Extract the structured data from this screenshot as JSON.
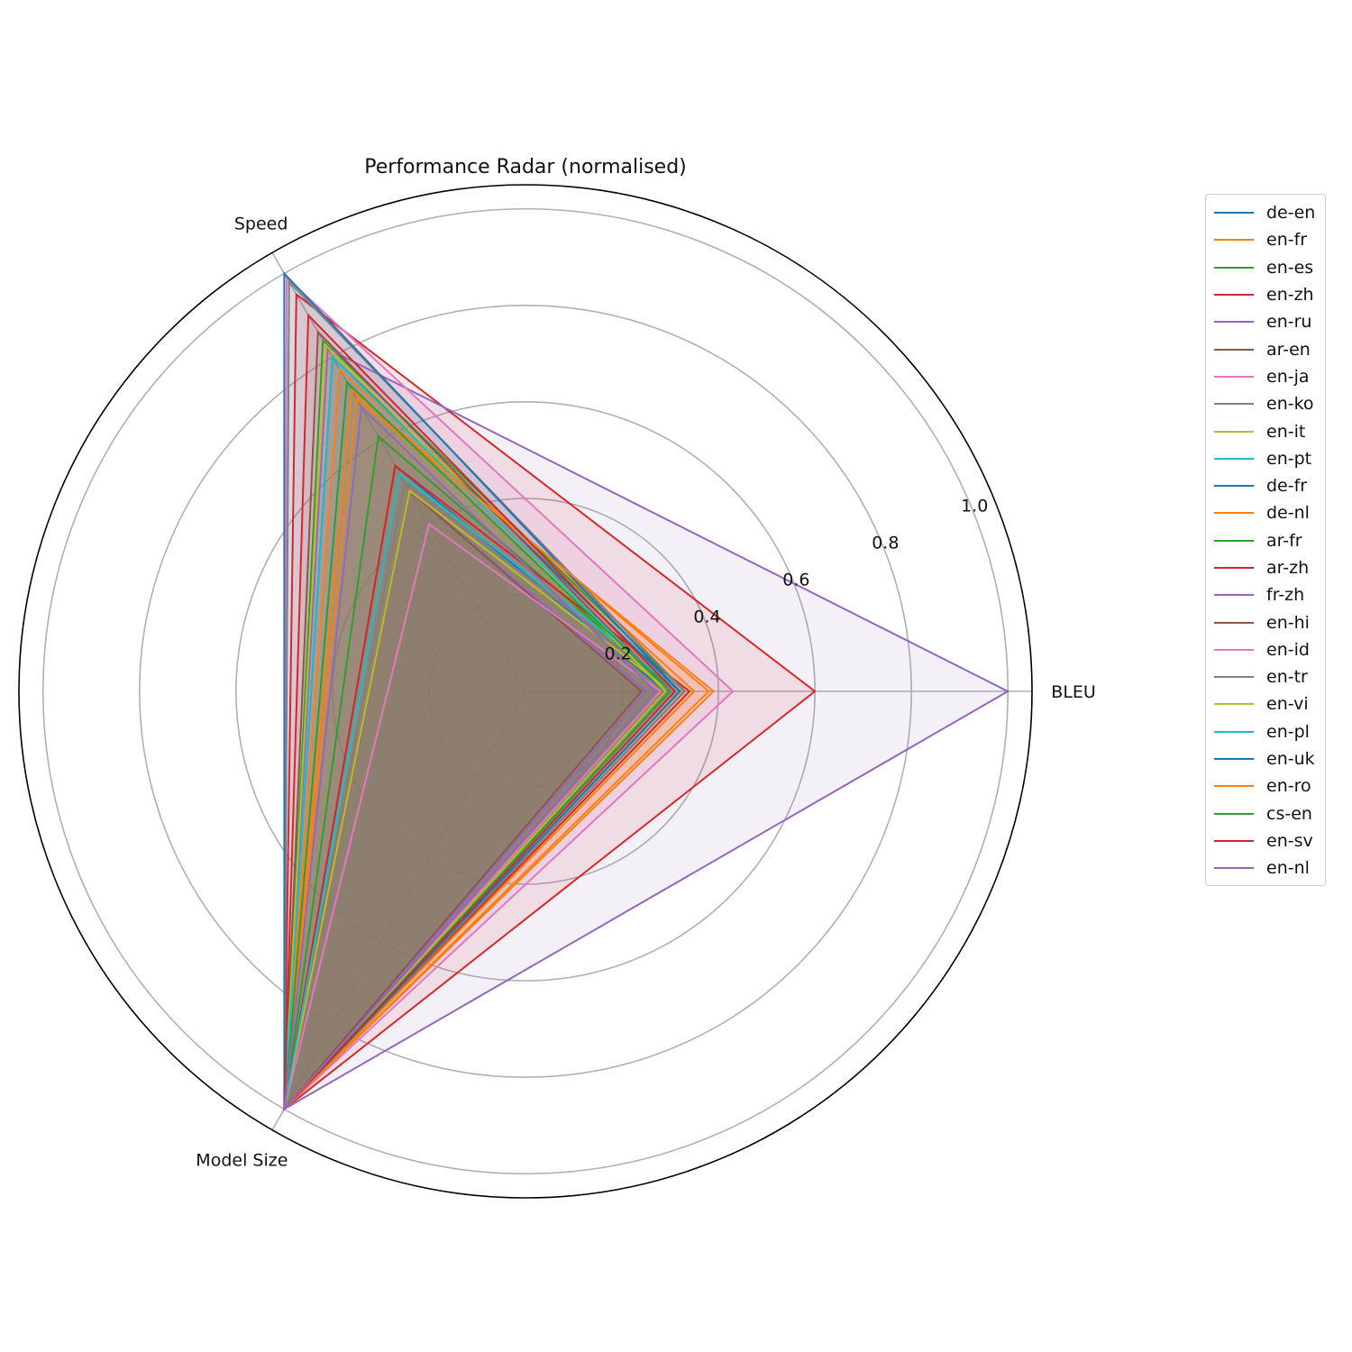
{
  "chart_data": {
    "type": "radar",
    "title": "Performance Radar (normalised)",
    "axes": [
      "BLEU",
      "Speed",
      "Model Size"
    ],
    "rlim": [
      0,
      1.05
    ],
    "r_ticks": [
      0.2,
      0.4,
      0.6,
      0.8,
      1.0
    ],
    "r_tick_labels": [
      "0.2",
      "0.4",
      "0.6",
      "0.8",
      "1.0"
    ],
    "grid": true,
    "legend_position": "right",
    "series": [
      {
        "name": "de-en",
        "color": "#1f77b4",
        "values": [
          0.29,
          0.54,
          1.0
        ]
      },
      {
        "name": "en-fr",
        "color": "#ff7f0e",
        "values": [
          0.38,
          0.72,
          1.0
        ]
      },
      {
        "name": "en-es",
        "color": "#2ca02c",
        "values": [
          0.31,
          0.61,
          1.0
        ]
      },
      {
        "name": "en-zh",
        "color": "#d62728",
        "values": [
          0.34,
          0.54,
          1.0
        ]
      },
      {
        "name": "en-ru",
        "color": "#9467bd",
        "values": [
          0.25,
          0.48,
          1.0
        ]
      },
      {
        "name": "ar-en",
        "color": "#8c564b",
        "values": [
          0.24,
          0.48,
          1.0
        ]
      },
      {
        "name": "en-ja",
        "color": "#e377c2",
        "values": [
          0.28,
          0.4,
          1.0
        ]
      },
      {
        "name": "en-ko",
        "color": "#7f7f7f",
        "values": [
          0.31,
          0.5,
          1.0
        ]
      },
      {
        "name": "en-it",
        "color": "#bcbd22",
        "values": [
          0.3,
          0.48,
          1.0
        ]
      },
      {
        "name": "en-pt",
        "color": "#17becf",
        "values": [
          0.32,
          0.52,
          1.0
        ]
      },
      {
        "name": "de-fr",
        "color": "#1f77b4",
        "values": [
          0.32,
          0.8,
          1.0
        ]
      },
      {
        "name": "de-nl",
        "color": "#ff7f0e",
        "values": [
          0.35,
          0.77,
          1.0
        ]
      },
      {
        "name": "ar-fr",
        "color": "#2ca02c",
        "values": [
          0.33,
          0.84,
          1.0
        ]
      },
      {
        "name": "ar-zh",
        "color": "#d62728",
        "values": [
          0.6,
          0.95,
          1.0
        ]
      },
      {
        "name": "fr-zh",
        "color": "#9467bd",
        "values": [
          1.0,
          0.82,
          1.0
        ]
      },
      {
        "name": "en-hi",
        "color": "#8c564b",
        "values": [
          0.3,
          0.86,
          1.0
        ]
      },
      {
        "name": "en-id",
        "color": "#e377c2",
        "values": [
          0.43,
          0.99,
          1.0
        ]
      },
      {
        "name": "en-tr",
        "color": "#7f7f7f",
        "values": [
          0.33,
          0.98,
          1.0
        ]
      },
      {
        "name": "en-vi",
        "color": "#bcbd22",
        "values": [
          0.29,
          0.83,
          1.0
        ]
      },
      {
        "name": "en-pl",
        "color": "#17becf",
        "values": [
          0.3,
          0.8,
          1.0
        ]
      },
      {
        "name": "en-uk",
        "color": "#1f77b4",
        "values": [
          0.32,
          1.0,
          1.0
        ]
      },
      {
        "name": "en-ro",
        "color": "#ff7f0e",
        "values": [
          0.39,
          0.7,
          1.0
        ]
      },
      {
        "name": "cs-en",
        "color": "#2ca02c",
        "values": [
          0.3,
          0.74,
          1.0
        ]
      },
      {
        "name": "en-sv",
        "color": "#d62728",
        "values": [
          0.31,
          0.9,
          1.0
        ]
      },
      {
        "name": "en-nl",
        "color": "#9467bd",
        "values": [
          0.27,
          0.68,
          1.0
        ]
      }
    ]
  }
}
